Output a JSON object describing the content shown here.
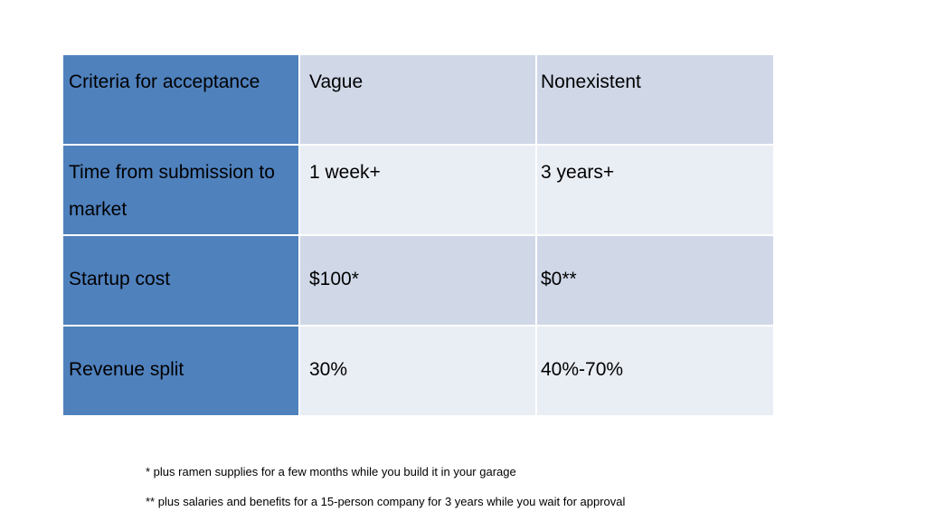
{
  "table": {
    "rows": [
      {
        "label": "Criteria for acceptance",
        "col2": "Vague",
        "col3": "Nonexistent"
      },
      {
        "label": "Time from submission to market",
        "col2": "1 week+",
        "col3": "3 years+"
      },
      {
        "label": "Startup cost",
        "col2": "$100*",
        "col3": "$0**"
      },
      {
        "label": "Revenue split",
        "col2": "30%",
        "col3": "40%-70%"
      }
    ]
  },
  "footnotes": [
    "* plus ramen supplies for a few months while you build it in your garage",
    "** plus salaries and benefits for a 15-person company for 3 years while you wait for approval"
  ],
  "colors": {
    "label_column": "#4f81bd",
    "band_dark": "#d0d8e8",
    "band_light": "#e9edf4"
  }
}
